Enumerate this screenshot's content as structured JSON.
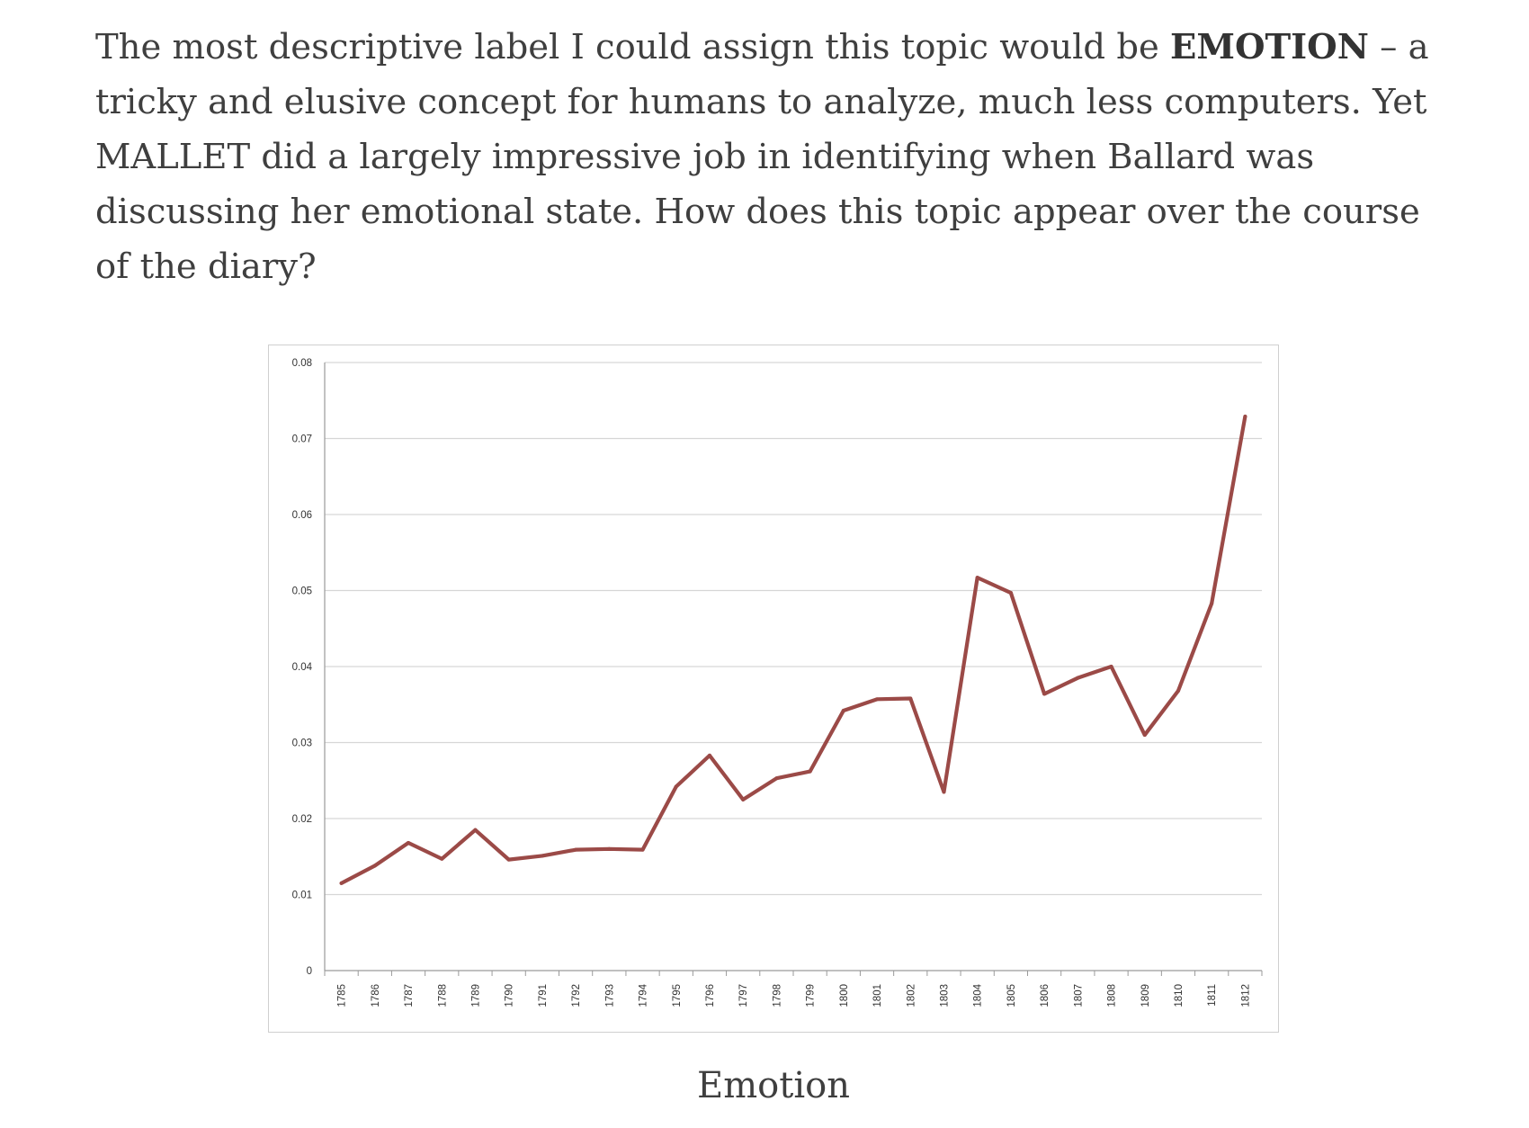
{
  "article": {
    "para_part1": "The most descriptive label I could assign this topic would be ",
    "para_bold": "EMOTION",
    "para_part2": " – a tricky and elusive concept for humans to analyze, much less computers. Yet MALLET did a largely impressive job in identifying when Ballard was discussing her emotional state. How does this topic appear over the course of the diary?",
    "caption": "Emotion"
  },
  "chart_data": {
    "type": "line",
    "categories": [
      "1785",
      "1786",
      "1787",
      "1788",
      "1789",
      "1790",
      "1791",
      "1792",
      "1793",
      "1794",
      "1795",
      "1796",
      "1797",
      "1798",
      "1799",
      "1800",
      "1801",
      "1802",
      "1803",
      "1804",
      "1805",
      "1806",
      "1807",
      "1808",
      "1809",
      "1810",
      "1811",
      "1812"
    ],
    "series": [
      {
        "color": "#9b4a47",
        "values": [
          0.0115,
          0.0138,
          0.0168,
          0.0147,
          0.0185,
          0.0146,
          0.0151,
          0.0159,
          0.016,
          0.0159,
          0.0242,
          0.0283,
          0.0225,
          0.0253,
          0.0262,
          0.0342,
          0.0357,
          0.0358,
          0.0235,
          0.0517,
          0.0497,
          0.0364,
          0.0385,
          0.04,
          0.031,
          0.0368,
          0.0483,
          0.0729
        ]
      }
    ],
    "yticks": [
      "0",
      "0.01",
      "0.02",
      "0.03",
      "0.04",
      "0.05",
      "0.06",
      "0.07",
      "0.08"
    ],
    "ylim": [
      0,
      0.08
    ],
    "grid": true,
    "title": "",
    "xlabel": "",
    "ylabel": ""
  }
}
